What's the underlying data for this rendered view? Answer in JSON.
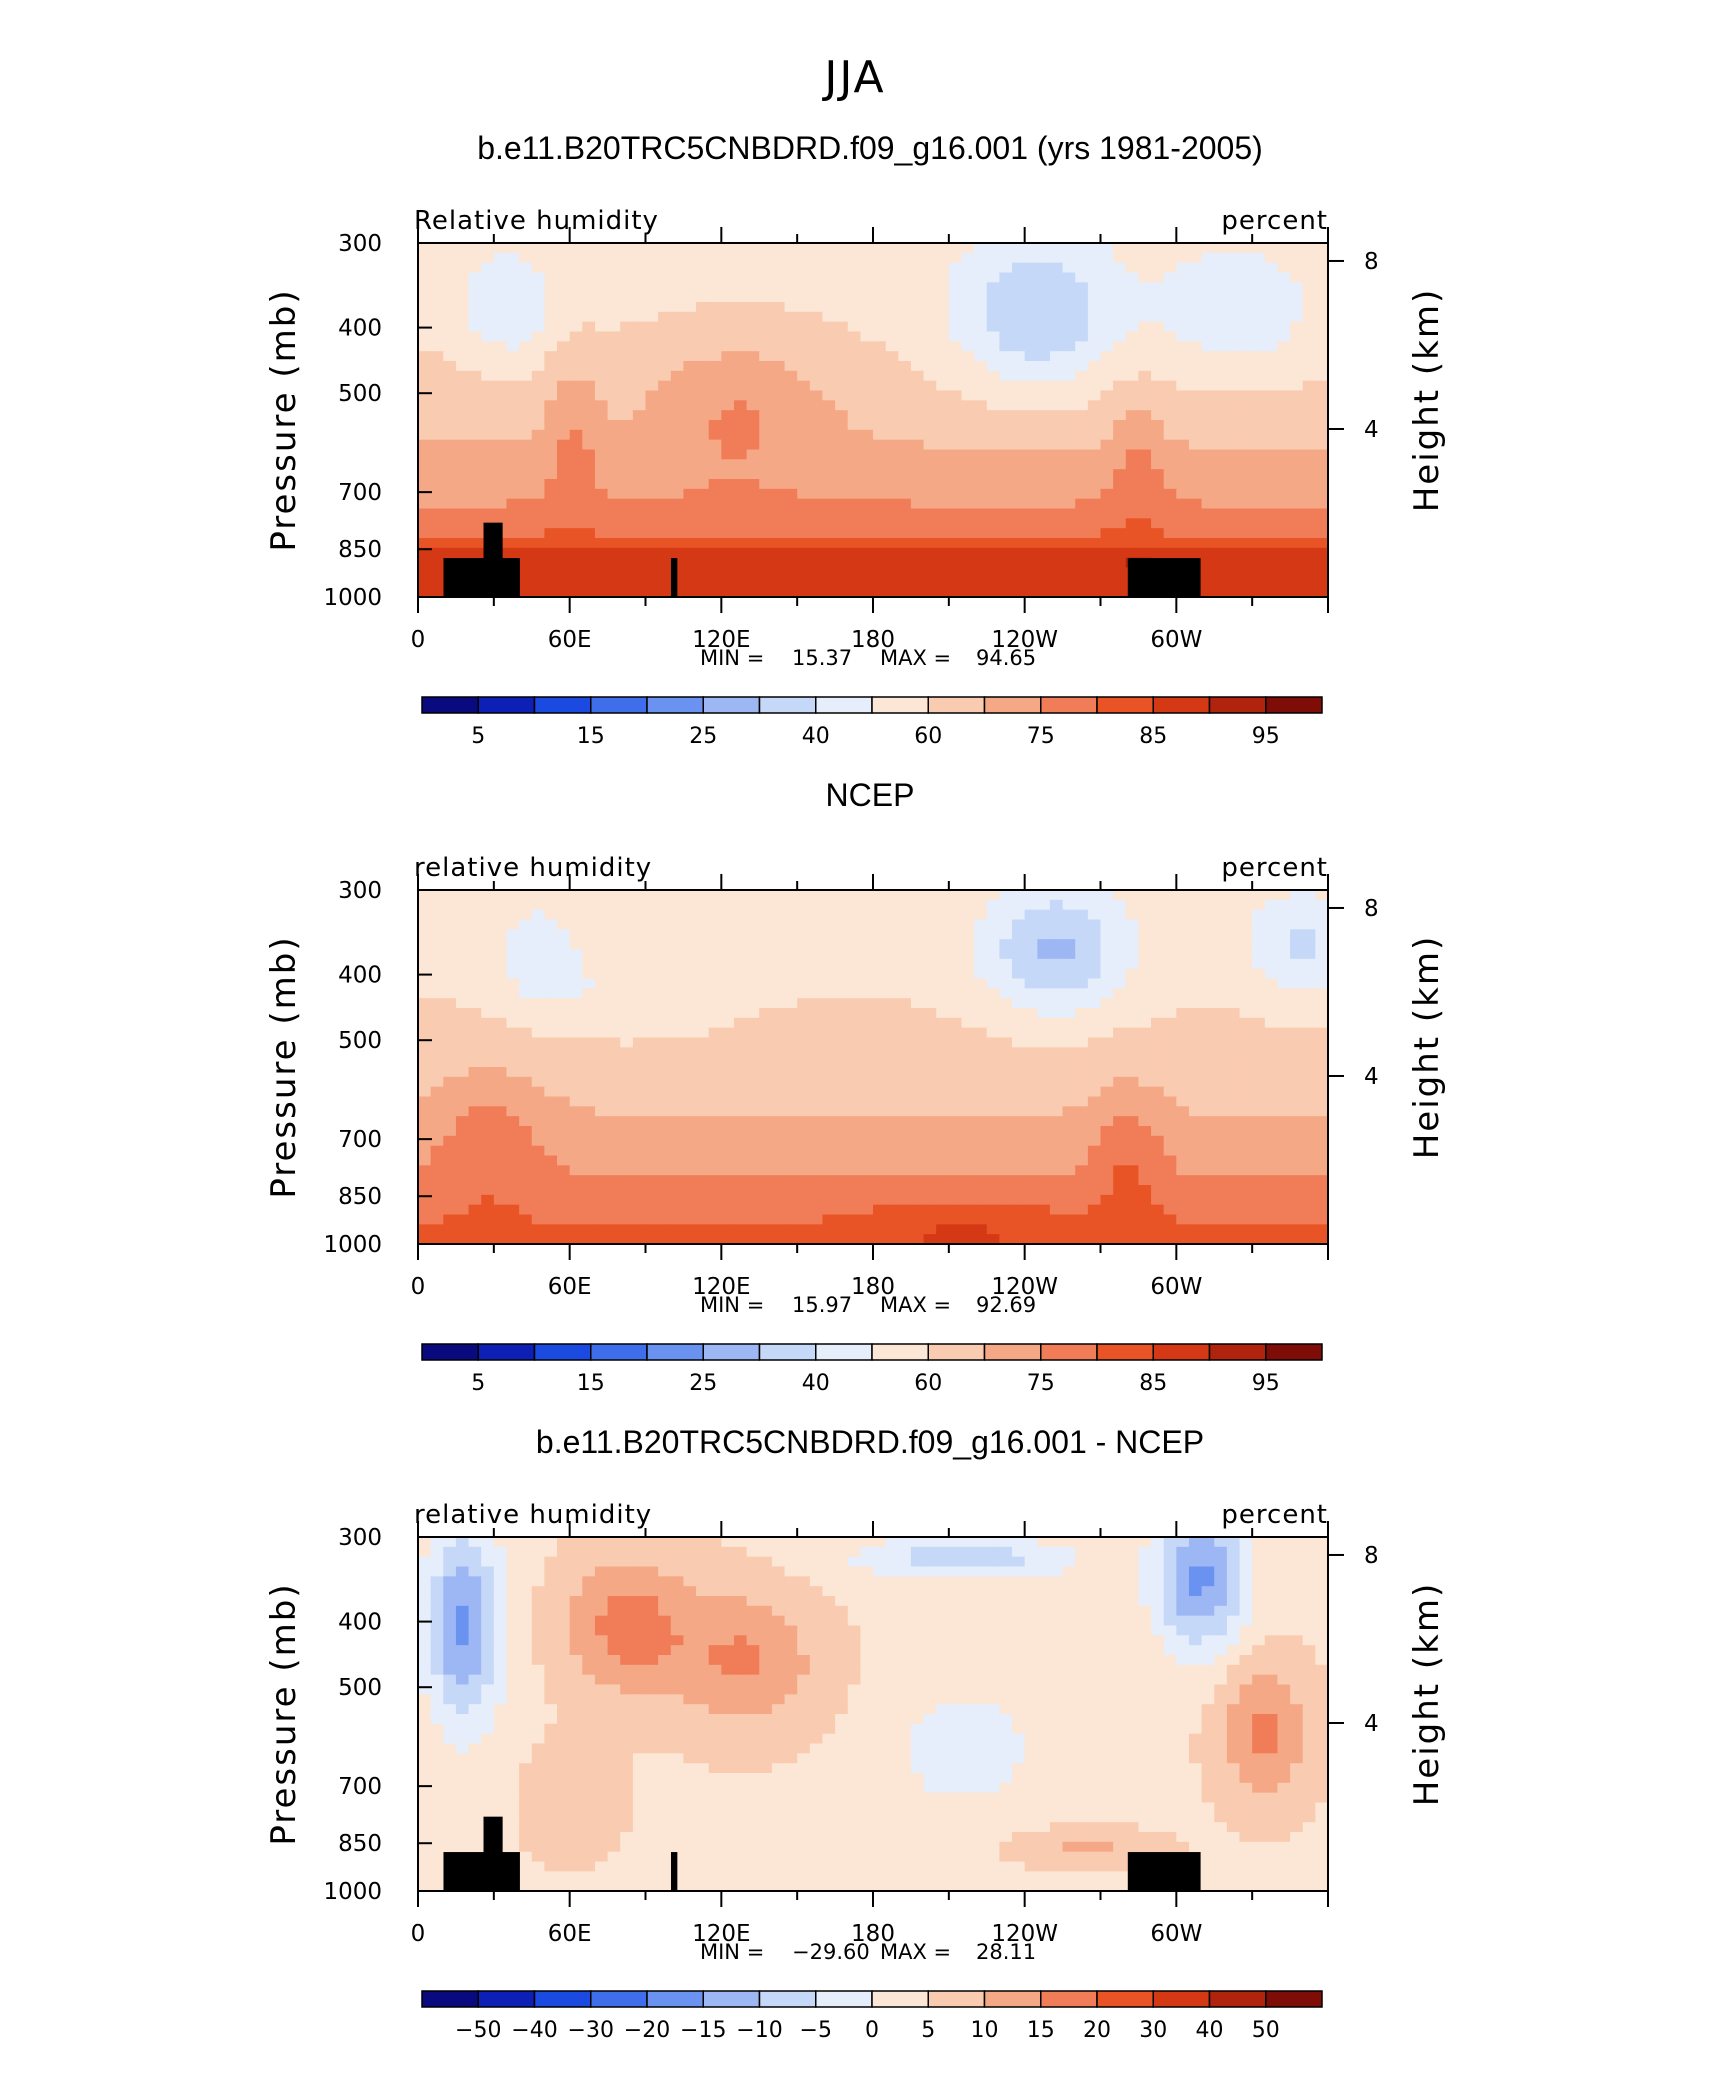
{
  "figure_title": "JJA",
  "colors": {
    "abs_colorbar": [
      "#0a0a7f",
      "#0d1fb5",
      "#1b4ae0",
      "#3f6eea",
      "#6a92f0",
      "#9db7f5",
      "#c6d8f7",
      "#e5eefa",
      "#fce6d5",
      "#f9cbb0",
      "#f5a886",
      "#f07d58",
      "#e95426",
      "#d53814",
      "#b0230c",
      "#7e0d07"
    ],
    "diff_colorbar": [
      "#0a0a7f",
      "#0d1fb5",
      "#1b4ae0",
      "#3f6eea",
      "#6a92f0",
      "#9db7f5",
      "#c6d8f7",
      "#e5eefa",
      "#fce6d5",
      "#f9cbb0",
      "#f5a886",
      "#f07d58",
      "#e95426",
      "#d53814",
      "#b0230c",
      "#7e0d07"
    ],
    "topography": "#000000"
  },
  "chart_data": [
    {
      "type": "heatmap",
      "title": "b.e11.B20TRC5CNBDRD.f09_g16.001 (yrs 1981-2005)",
      "variable_label": "Relative humidity",
      "units_label": "percent",
      "ylabel": "Pressure (mb)",
      "ylabel_right": "Height (km)",
      "x_tick_labels": [
        "0",
        "60E",
        "120E",
        "180",
        "120W",
        "60W"
      ],
      "x_ticks_deg": [
        0,
        60,
        120,
        180,
        240,
        300
      ],
      "xlim": [
        0,
        360
      ],
      "y_tick_labels": [
        "300",
        "400",
        "500",
        "700",
        "850",
        "1000"
      ],
      "y_ticks": [
        300,
        400,
        500,
        700,
        850,
        1000
      ],
      "ylim": [
        300,
        1000
      ],
      "height_ticks_km": [
        8,
        4
      ],
      "min_label": "MIN =",
      "min_value": "15.37",
      "max_label": "MAX =",
      "max_value": "94.65",
      "colorbar_labels": [
        "5",
        "15",
        "25",
        "40",
        "60",
        "75",
        "85",
        "95"
      ],
      "colorbar_levels": [
        5,
        10,
        15,
        20,
        25,
        30,
        40,
        50,
        60,
        65,
        75,
        80,
        85,
        90,
        95
      ]
    },
    {
      "type": "heatmap",
      "title": "NCEP",
      "variable_label": "relative humidity",
      "units_label": "percent",
      "ylabel": "Pressure (mb)",
      "ylabel_right": "Height (km)",
      "x_tick_labels": [
        "0",
        "60E",
        "120E",
        "180",
        "120W",
        "60W"
      ],
      "x_ticks_deg": [
        0,
        60,
        120,
        180,
        240,
        300
      ],
      "xlim": [
        0,
        360
      ],
      "y_tick_labels": [
        "300",
        "400",
        "500",
        "700",
        "850",
        "1000"
      ],
      "y_ticks": [
        300,
        400,
        500,
        700,
        850,
        1000
      ],
      "ylim": [
        300,
        1000
      ],
      "height_ticks_km": [
        8,
        4
      ],
      "min_label": "MIN =",
      "min_value": "15.97",
      "max_label": "MAX =",
      "max_value": "92.69",
      "colorbar_labels": [
        "5",
        "15",
        "25",
        "40",
        "60",
        "75",
        "85",
        "95"
      ],
      "colorbar_levels": [
        5,
        10,
        15,
        20,
        25,
        30,
        40,
        50,
        60,
        65,
        75,
        80,
        85,
        90,
        95
      ]
    },
    {
      "type": "heatmap",
      "title": "b.e11.B20TRC5CNBDRD.f09_g16.001 - NCEP",
      "variable_label": "relative humidity",
      "units_label": "percent",
      "ylabel": "Pressure (mb)",
      "ylabel_right": "Height (km)",
      "x_tick_labels": [
        "0",
        "60E",
        "120E",
        "180",
        "120W",
        "60W"
      ],
      "x_ticks_deg": [
        0,
        60,
        120,
        180,
        240,
        300
      ],
      "xlim": [
        0,
        360
      ],
      "y_tick_labels": [
        "300",
        "400",
        "500",
        "700",
        "850",
        "1000"
      ],
      "y_ticks": [
        300,
        400,
        500,
        700,
        850,
        1000
      ],
      "ylim": [
        300,
        1000
      ],
      "height_ticks_km": [
        8,
        4
      ],
      "min_label": "MIN =",
      "min_value": "−29.60",
      "max_label": "MAX =",
      "max_value": "28.11",
      "colorbar_labels": [
        "−50",
        "−40",
        "−30",
        "−20",
        "−15",
        "−10",
        "−5",
        "0",
        "5",
        "10",
        "15",
        "20",
        "30",
        "40",
        "50"
      ],
      "colorbar_levels": [
        -50,
        -40,
        -30,
        -20,
        -15,
        -10,
        -5,
        0,
        5,
        10,
        15,
        20,
        30,
        40,
        50
      ]
    }
  ]
}
